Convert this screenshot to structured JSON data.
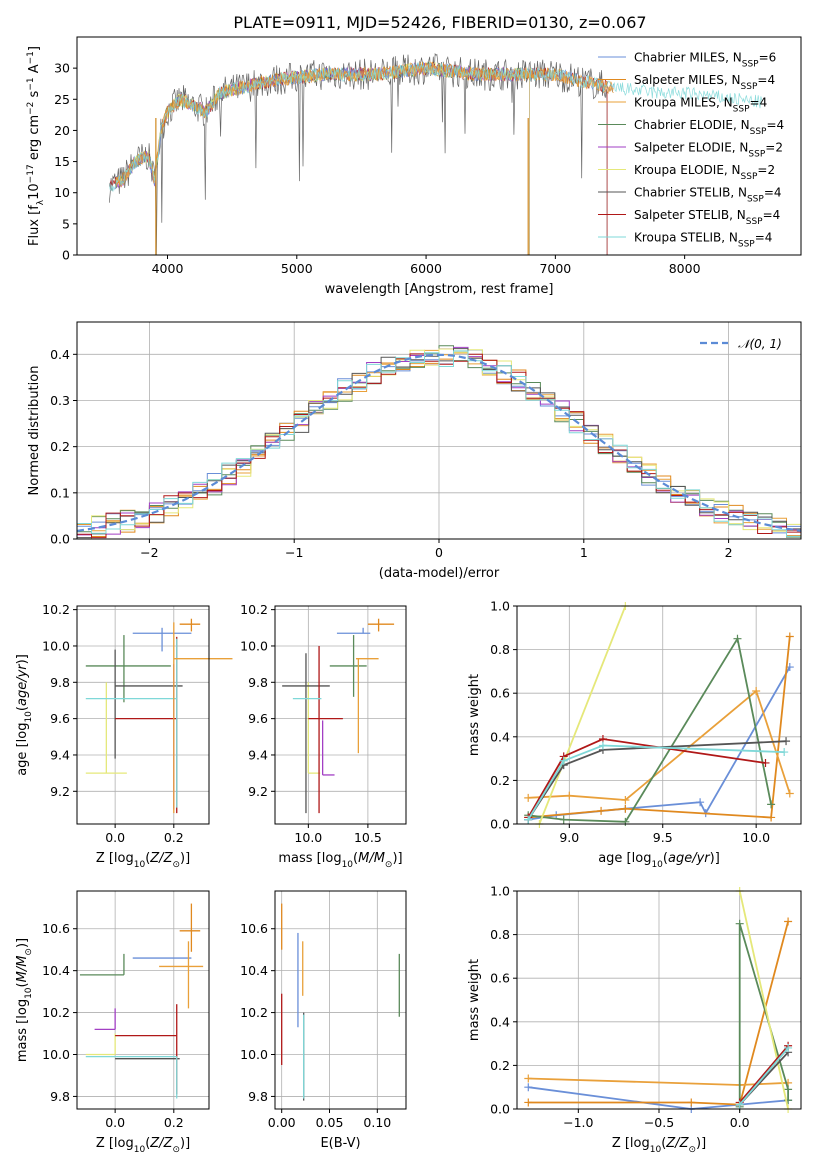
{
  "figure_title": "PLATE=0911, MJD=52426, FIBERID=0130, z=0.067",
  "colors": {
    "Chabrier MILES": "#6a8fd8",
    "Salpeter MILES": "#e0891f",
    "Kroupa MILES": "#e9a03a",
    "Chabrier ELODIE": "#5a8a5a",
    "Salpeter ELODIE": "#a23fc4",
    "Kroupa ELODIE": "#e5e87a",
    "Chabrier STELIB": "#555555",
    "Salpeter STELIB": "#b01818",
    "Kroupa STELIB": "#7fd8d8"
  },
  "chart_data": [
    {
      "id": "spectrum",
      "type": "line",
      "xlabel": "wavelength [Angstrom, rest frame]",
      "ylabel": "Flux [f",
      "ylabel_parts": {
        "pre": "Flux [f",
        "sub": "λ",
        "mid": "10",
        "sup": "−17",
        "post": " erg cm",
        "sup2": "−2",
        "post2": " s",
        "sup3": "−1",
        "post3": " A",
        "sup4": "−1",
        "end": "]"
      },
      "xlim": [
        3300,
        8900
      ],
      "ylim": [
        0,
        35
      ],
      "xticks": [
        "4000",
        "5000",
        "6000",
        "7000",
        "8000"
      ],
      "xtick_values": [
        4000,
        5000,
        6000,
        7000,
        8000
      ],
      "yticks": [
        "0",
        "5",
        "10",
        "15",
        "20",
        "25",
        "30"
      ],
      "ytick_values": [
        0,
        5,
        10,
        15,
        20,
        25,
        30
      ],
      "grid": false,
      "legend_position": "right",
      "series": [
        {
          "name": "Chabrier MILES",
          "nssp": "6"
        },
        {
          "name": "Salpeter MILES",
          "nssp": "4"
        },
        {
          "name": "Kroupa MILES",
          "nssp": "4"
        },
        {
          "name": "Chabrier ELODIE",
          "nssp": "4"
        },
        {
          "name": "Salpeter ELODIE",
          "nssp": "2"
        },
        {
          "name": "Kroupa ELODIE",
          "nssp": "2"
        },
        {
          "name": "Chabrier STELIB",
          "nssp": "4"
        },
        {
          "name": "Salpeter STELIB",
          "nssp": "4"
        },
        {
          "name": "Kroupa STELIB",
          "nssp": "4"
        }
      ],
      "continuum": {
        "x": [
          3550,
          3650,
          3750,
          3850,
          3900,
          3950,
          4000,
          4100,
          4200,
          4300,
          4400,
          4600,
          4800,
          5000,
          5200,
          5400,
          5600,
          5800,
          6000,
          6200,
          6400,
          6600,
          6800,
          7000,
          7200,
          7400,
          7600,
          7800,
          8000,
          8200,
          8400,
          8600
        ],
        "y": [
          11,
          12,
          15,
          16,
          12,
          20,
          23,
          25,
          24,
          23,
          26,
          27,
          28,
          28.5,
          29,
          29,
          29,
          29.5,
          30,
          29.5,
          29,
          29,
          29,
          29,
          28,
          27,
          26.5,
          26,
          26,
          25.5,
          25,
          24.5
        ]
      }
    },
    {
      "id": "residuals",
      "type": "area",
      "xlabel": "(data-model)/error",
      "ylabel": "Normed distribution",
      "xlim": [
        -2.5,
        2.5
      ],
      "ylim": [
        0,
        0.47
      ],
      "xticks": [
        "−2",
        "−1",
        "0",
        "1",
        "2"
      ],
      "xtick_values": [
        -2,
        -1,
        0,
        1,
        2
      ],
      "yticks": [
        "0.0",
        "0.1",
        "0.2",
        "0.3",
        "0.4"
      ],
      "ytick_values": [
        0,
        0.1,
        0.2,
        0.3,
        0.4
      ],
      "grid": true,
      "legend_position": "top-right",
      "legend_label": "𝒩(0, 1)",
      "gaussian": {
        "mean": 0,
        "sigma": 1
      }
    },
    {
      "id": "age_vs_Z",
      "type": "scatter",
      "xlabel": "Z [log10(Z/Z⊙)]",
      "ylabel": "age  [log10(age/yr)]",
      "xlim": [
        -0.13,
        0.32
      ],
      "ylim": [
        9.02,
        10.22
      ],
      "xticks": [
        "0.0",
        "0.2"
      ],
      "xtick_values": [
        0,
        0.2
      ],
      "yticks": [
        "9.2",
        "9.4",
        "9.6",
        "9.8",
        "10.0",
        "10.2"
      ],
      "ytick_values": [
        9.2,
        9.4,
        9.6,
        9.8,
        10.0,
        10.2
      ],
      "grid": true,
      "points": [
        {
          "series": "Chabrier MILES",
          "x": 0.16,
          "y": 10.07,
          "xerr": [
            0.1,
            0.1
          ],
          "yerr": [
            0.1,
            0.03
          ]
        },
        {
          "series": "Salpeter MILES",
          "x": 0.26,
          "y": 10.12,
          "xerr": [
            0.04,
            0.03
          ],
          "yerr": [
            0.04,
            0.03
          ]
        },
        {
          "series": "Chabrier ELODIE",
          "x": 0.03,
          "y": 9.89,
          "xerr": [
            0.13,
            0.16
          ],
          "yerr": [
            0.2,
            0.17
          ]
        },
        {
          "series": "Salpeter ELODIE",
          "x": 0.2,
          "y": 9.6,
          "xerr": [
            0.0,
            0.0
          ],
          "yerr": [
            0.5,
            0.3
          ]
        },
        {
          "series": "Kroupa ELODIE",
          "x": -0.03,
          "y": 9.3,
          "xerr": [
            0.07,
            0.07
          ],
          "yerr": [
            0.0,
            0.5
          ]
        },
        {
          "series": "Chabrier STELIB",
          "x": 0.0,
          "y": 9.78,
          "xerr": [
            0.0,
            0.23
          ],
          "yerr": [
            0.4,
            0.2
          ]
        },
        {
          "series": "Salpeter STELIB",
          "x": 0.21,
          "y": 9.6,
          "xerr": [
            0.21,
            0.0
          ],
          "yerr": [
            0.52,
            0.45
          ]
        },
        {
          "series": "Kroupa STELIB",
          "x": 0.21,
          "y": 9.71,
          "xerr": [
            0.31,
            0.0
          ],
          "yerr": [
            0.6,
            0.33
          ]
        },
        {
          "series": "Kroupa MILES",
          "x": 0.2,
          "y": 9.93,
          "xerr": [
            0.0,
            0.2
          ],
          "yerr": [
            0.85,
            0.2
          ]
        }
      ]
    },
    {
      "id": "age_vs_mass",
      "type": "scatter",
      "xlabel": "mass [log10(M/M⊙)]",
      "ylabel": "",
      "xlim": [
        9.72,
        10.82
      ],
      "ylim": [
        9.02,
        10.22
      ],
      "xticks": [
        "10.0",
        "10.5"
      ],
      "xtick_values": [
        10.0,
        10.5
      ],
      "yticks": [
        "9.2",
        "9.4",
        "9.6",
        "9.8",
        "10.0",
        "10.2"
      ],
      "ytick_values": [
        9.2,
        9.4,
        9.6,
        9.8,
        10.0,
        10.2
      ],
      "grid": true,
      "points": [
        {
          "series": "Chabrier MILES",
          "x": 10.46,
          "y": 10.07,
          "xerr": [
            0.22,
            0.06
          ],
          "yerr": [
            0.0,
            0.03
          ]
        },
        {
          "series": "Salpeter MILES",
          "x": 10.59,
          "y": 10.12,
          "xerr": [
            0.09,
            0.13
          ],
          "yerr": [
            0.04,
            0.03
          ]
        },
        {
          "series": "Chabrier ELODIE",
          "x": 10.38,
          "y": 9.89,
          "xerr": [
            0.2,
            0.11
          ],
          "yerr": [
            0.17,
            0.17
          ]
        },
        {
          "series": "Salpeter ELODIE",
          "x": 10.12,
          "y": 9.29,
          "xerr": [
            0.0,
            0.1
          ],
          "yerr": [
            0.0,
            0.3
          ]
        },
        {
          "series": "Kroupa ELODIE",
          "x": 10.0,
          "y": 9.3,
          "xerr": [
            0.0,
            0.1
          ],
          "yerr": [
            0.0,
            0.5
          ]
        },
        {
          "series": "Chabrier STELIB",
          "x": 9.98,
          "y": 9.78,
          "xerr": [
            0.2,
            0.2
          ],
          "yerr": [
            0.7,
            0.18
          ]
        },
        {
          "series": "Salpeter STELIB",
          "x": 10.09,
          "y": 9.6,
          "xerr": [
            0.09,
            0.2
          ],
          "yerr": [
            0.52,
            0.4
          ]
        },
        {
          "series": "Kroupa STELIB",
          "x": 9.99,
          "y": 9.71,
          "xerr": [
            0.12,
            0.12
          ],
          "yerr": [
            0.0,
            0.0
          ]
        },
        {
          "series": "Kroupa MILES",
          "x": 10.42,
          "y": 9.93,
          "xerr": [
            0.02,
            0.17
          ],
          "yerr": [
            0.52,
            0.0
          ]
        }
      ]
    },
    {
      "id": "massweight_vs_age",
      "type": "line",
      "xlabel": "age  [log10(age/yr)]",
      "ylabel": "mass weight",
      "xlim": [
        8.72,
        10.24
      ],
      "ylim": [
        0,
        1
      ],
      "xticks": [
        "9.0",
        "9.5",
        "10.0"
      ],
      "xtick_values": [
        9.0,
        9.5,
        10.0
      ],
      "yticks": [
        "0.0",
        "0.2",
        "0.4",
        "0.6",
        "0.8",
        "1.0"
      ],
      "ytick_values": [
        0,
        0.2,
        0.4,
        0.6,
        0.8,
        1.0
      ],
      "grid": true,
      "series": [
        {
          "name": "Chabrier MILES",
          "x": [
            8.78,
            8.93,
            9.3,
            9.7,
            9.73,
            10.18
          ],
          "y": [
            0.02,
            0.04,
            0.07,
            0.1,
            0.05,
            0.72
          ]
        },
        {
          "name": "Salpeter MILES",
          "x": [
            8.78,
            9.17,
            9.3,
            10.08,
            10.18
          ],
          "y": [
            0.03,
            0.06,
            0.07,
            0.03,
            0.86
          ]
        },
        {
          "name": "Kroupa MILES",
          "x": [
            8.78,
            9.0,
            9.3,
            10.0,
            10.18
          ],
          "y": [
            0.12,
            0.13,
            0.11,
            0.61,
            0.14
          ]
        },
        {
          "name": "Chabrier ELODIE",
          "x": [
            8.78,
            8.97,
            9.3,
            9.9,
            10.08
          ],
          "y": [
            0.04,
            0.02,
            0.01,
            0.85,
            0.09
          ]
        },
        {
          "name": "Kroupa ELODIE",
          "x": [
            8.84,
            9.3
          ],
          "y": [
            0.0,
            1.0
          ]
        },
        {
          "name": "Chabrier STELIB",
          "x": [
            8.78,
            8.97,
            9.18,
            10.16
          ],
          "y": [
            0.02,
            0.27,
            0.34,
            0.38
          ]
        },
        {
          "name": "Salpeter STELIB",
          "x": [
            8.78,
            8.97,
            9.18,
            10.05
          ],
          "y": [
            0.03,
            0.31,
            0.39,
            0.28
          ]
        },
        {
          "name": "Kroupa STELIB",
          "x": [
            8.78,
            8.97,
            9.18,
            10.15
          ],
          "y": [
            0.02,
            0.29,
            0.36,
            0.33
          ]
        }
      ]
    },
    {
      "id": "mass_vs_Z",
      "type": "scatter",
      "xlabel": "Z [log10(Z/Z⊙)]",
      "ylabel": "mass [log10(M/M⊙)]",
      "xlim": [
        -0.13,
        0.32
      ],
      "ylim": [
        9.74,
        10.78
      ],
      "xticks": [
        "0.0",
        "0.2"
      ],
      "xtick_values": [
        0,
        0.2
      ],
      "yticks": [
        "9.8",
        "10.0",
        "10.2",
        "10.4",
        "10.6"
      ],
      "ytick_values": [
        9.8,
        10.0,
        10.2,
        10.4,
        10.6
      ],
      "grid": true,
      "points": [
        {
          "series": "Chabrier MILES",
          "x": 0.16,
          "y": 10.46,
          "xerr": [
            0.1,
            0.1
          ],
          "yerr": [
            0.0,
            0.0
          ]
        },
        {
          "series": "Salpeter MILES",
          "x": 0.26,
          "y": 10.59,
          "xerr": [
            0.04,
            0.03
          ],
          "yerr": [
            0.1,
            0.13
          ]
        },
        {
          "series": "Chabrier ELODIE",
          "x": 0.03,
          "y": 10.38,
          "xerr": [
            0.15,
            0.0
          ],
          "yerr": [
            0.0,
            0.1
          ]
        },
        {
          "series": "Salpeter ELODIE",
          "x": 0.0,
          "y": 10.12,
          "xerr": [
            0.07,
            0.0
          ],
          "yerr": [
            0.0,
            0.1
          ]
        },
        {
          "series": "Kroupa ELODIE",
          "x": 0.0,
          "y": 10.0,
          "xerr": [
            0.1,
            0.0
          ],
          "yerr": [
            0.0,
            0.1
          ]
        },
        {
          "series": "Chabrier STELIB",
          "x": 0.0,
          "y": 9.98,
          "xerr": [
            0.0,
            0.22
          ],
          "yerr": [
            0.0,
            0.0
          ]
        },
        {
          "series": "Salpeter STELIB",
          "x": 0.21,
          "y": 10.09,
          "xerr": [
            0.21,
            0.0
          ],
          "yerr": [
            0.28,
            0.15
          ]
        },
        {
          "series": "Kroupa STELIB",
          "x": 0.21,
          "y": 9.99,
          "xerr": [
            0.31,
            0.0
          ],
          "yerr": [
            0.2,
            0.0
          ]
        },
        {
          "series": "Kroupa MILES",
          "x": 0.25,
          "y": 10.42,
          "xerr": [
            0.1,
            0.05
          ],
          "yerr": [
            0.2,
            0.12
          ]
        }
      ]
    },
    {
      "id": "mass_vs_ebv",
      "type": "scatter",
      "xlabel": "E(B-V)",
      "ylabel": "",
      "xlim": [
        -0.007,
        0.13
      ],
      "ylim": [
        9.74,
        10.78
      ],
      "xticks": [
        "0.00",
        "0.05",
        "0.10"
      ],
      "xtick_values": [
        0,
        0.05,
        0.1
      ],
      "yticks": [
        "9.8",
        "10.0",
        "10.2",
        "10.4",
        "10.6"
      ],
      "ytick_values": [
        9.8,
        10.0,
        10.2,
        10.4,
        10.6
      ],
      "grid": true,
      "points": [
        {
          "series": "Salpeter MILES",
          "x": 0.0,
          "y": 10.59,
          "xerr": [
            0,
            0
          ],
          "yerr": [
            0.09,
            0.13
          ]
        },
        {
          "series": "Salpeter STELIB",
          "x": 0.0,
          "y": 10.09,
          "xerr": [
            0,
            0
          ],
          "yerr": [
            0.14,
            0.2
          ]
        },
        {
          "series": "Chabrier MILES",
          "x": 0.017,
          "y": 10.38,
          "xerr": [
            0,
            0
          ],
          "yerr": [
            0.25,
            0.2
          ]
        },
        {
          "series": "Kroupa MILES",
          "x": 0.022,
          "y": 10.4,
          "xerr": [
            0,
            0
          ],
          "yerr": [
            0.12,
            0.14
          ]
        },
        {
          "series": "Chabrier STELIB",
          "x": 0.023,
          "y": 9.98,
          "xerr": [
            0,
            0
          ],
          "yerr": [
            0.2,
            0.22
          ]
        },
        {
          "series": "Kroupa STELIB",
          "x": 0.023,
          "y": 9.99,
          "xerr": [
            0,
            0
          ],
          "yerr": [
            0.2,
            0.2
          ]
        },
        {
          "series": "Chabrier ELODIE",
          "x": 0.123,
          "y": 10.38,
          "xerr": [
            0,
            0
          ],
          "yerr": [
            0.2,
            0.1
          ]
        }
      ]
    },
    {
      "id": "massweight_vs_Z",
      "type": "line",
      "xlabel": "Z [log10(Z/Z⊙)]",
      "ylabel": "mass weight",
      "xlim": [
        -1.38,
        0.38
      ],
      "ylim": [
        0,
        1
      ],
      "xticks": [
        "−1.0",
        "−0.5",
        "0.0"
      ],
      "xtick_values": [
        -1.0,
        -0.5,
        0.0
      ],
      "yticks": [
        "0.0",
        "0.2",
        "0.4",
        "0.6",
        "0.8",
        "1.0"
      ],
      "ytick_values": [
        0,
        0.2,
        0.4,
        0.6,
        0.8,
        1.0
      ],
      "grid": true,
      "series": [
        {
          "name": "Chabrier MILES",
          "x": [
            -1.31,
            -0.3,
            0.0,
            0.3
          ],
          "y": [
            0.1,
            0.0,
            0.02,
            0.04
          ]
        },
        {
          "name": "Salpeter MILES",
          "x": [
            -1.31,
            -0.3,
            0.0,
            0.3
          ],
          "y": [
            0.03,
            0.03,
            0.02,
            0.86
          ]
        },
        {
          "name": "Kroupa MILES",
          "x": [
            -1.31,
            0.0,
            0.3
          ],
          "y": [
            0.14,
            0.11,
            0.12
          ]
        },
        {
          "name": "Chabrier ELODIE",
          "x": [
            0.0,
            0.0,
            0.3,
            0.3
          ],
          "y": [
            0.01,
            0.85,
            0.09,
            0.04
          ]
        },
        {
          "name": "Kroupa ELODIE",
          "x": [
            0.0,
            0.3
          ],
          "y": [
            1.0,
            0.0
          ]
        },
        {
          "name": "Chabrier STELIB",
          "x": [
            0.0,
            0.3
          ],
          "y": [
            0.02,
            0.26
          ]
        },
        {
          "name": "Salpeter STELIB",
          "x": [
            0.0,
            0.3
          ],
          "y": [
            0.03,
            0.29
          ]
        },
        {
          "name": "Kroupa STELIB",
          "x": [
            0.0,
            0.3
          ],
          "y": [
            0.02,
            0.28
          ]
        }
      ]
    }
  ]
}
